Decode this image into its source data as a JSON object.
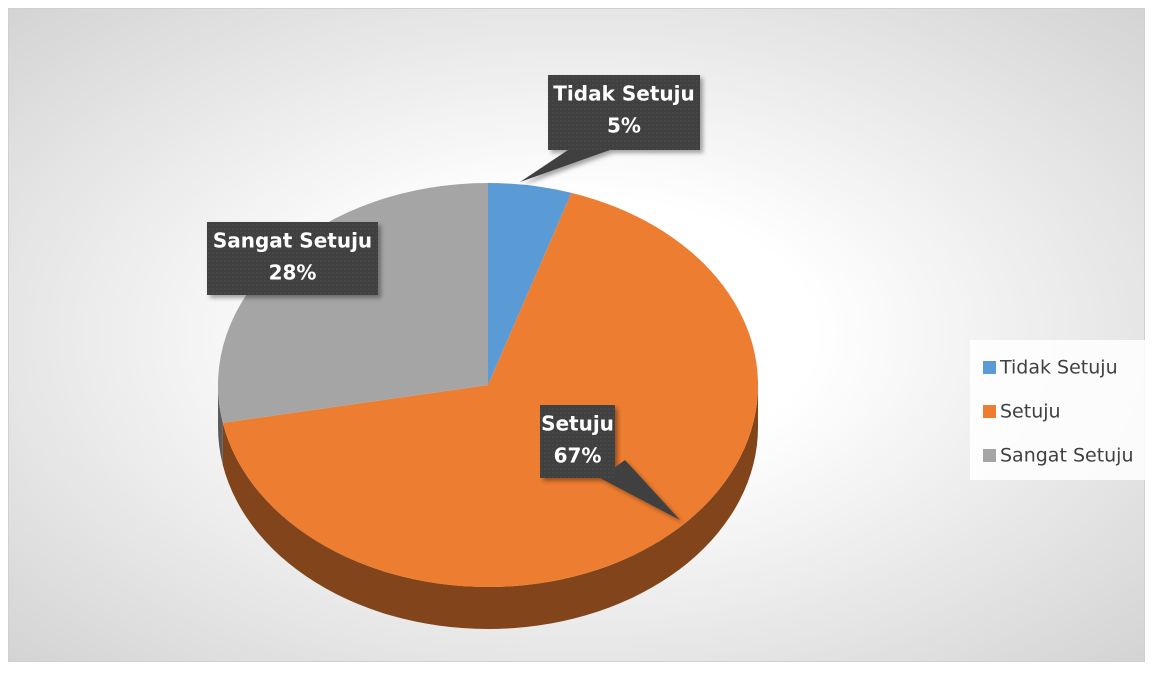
{
  "chart_data": {
    "type": "pie",
    "categories": [
      "Tidak Setuju",
      "Setuju",
      "Sangat Setuju"
    ],
    "values": [
      5,
      67,
      28
    ],
    "value_labels": [
      "5%",
      "67%",
      "28%"
    ],
    "colors": [
      "#5b9bd5",
      "#ed7d31",
      "#a5a5a5"
    ],
    "legend": "right"
  }
}
